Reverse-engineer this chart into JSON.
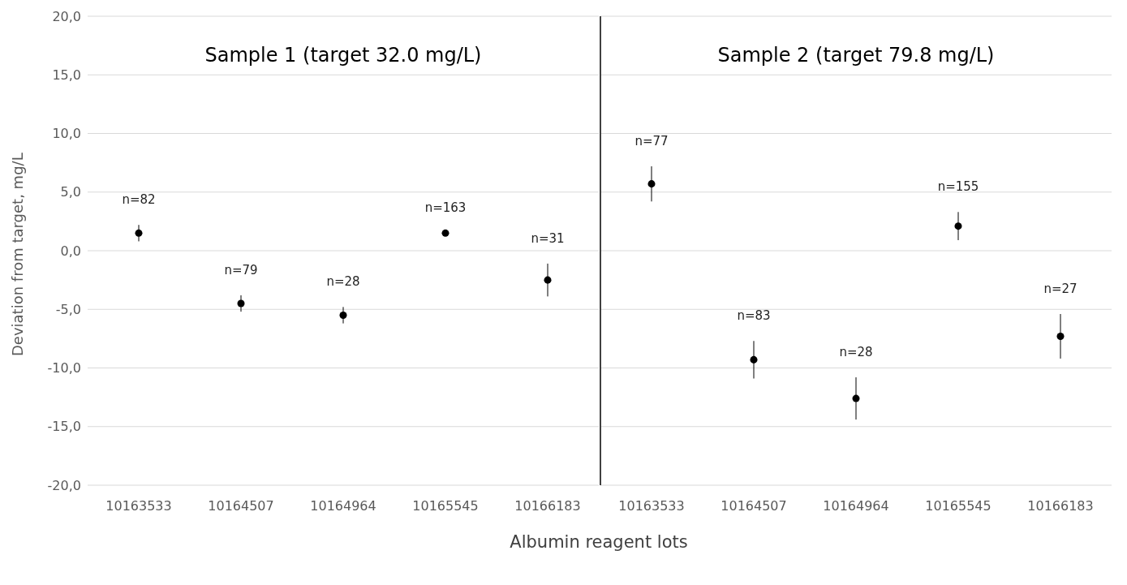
{
  "chart_data": [
    {
      "type": "scatter",
      "categories": [
        "10163533",
        "10164507",
        "10164964",
        "10165545",
        "10166183"
      ],
      "values": [
        1.5,
        -4.5,
        -5.5,
        1.5,
        -2.5
      ],
      "errors": [
        0.7,
        0.7,
        0.7,
        null,
        1.4
      ],
      "color": "#000000",
      "marker": "circle",
      "xlabel": "Albumin reagent lots",
      "ylabel": "Deviation from target, mg/L",
      "annotations": [
        "Sample 1 (target 32.0 mg/L)",
        "n=82",
        "n=79",
        "n=28",
        "n=163",
        "n=31"
      ],
      "ylim": [
        -20,
        20
      ],
      "yticks": [
        {
          "value": -20,
          "label": "-20,0"
        },
        {
          "value": -15,
          "label": "-15,0"
        },
        {
          "value": -10,
          "label": "-10,0"
        },
        {
          "value": -5,
          "label": "-5,0"
        },
        {
          "value": 0,
          "label": "0,0"
        },
        {
          "value": 5,
          "label": "5,0"
        },
        {
          "value": 10,
          "label": "10,0"
        },
        {
          "value": 15,
          "label": "15,0"
        },
        {
          "value": 20,
          "label": "20,0"
        }
      ],
      "grid": "y"
    },
    {
      "type": "scatter",
      "categories": [
        "10163533",
        "10164507",
        "10164964",
        "10165545",
        "10166183"
      ],
      "values": [
        5.7,
        -9.3,
        -12.6,
        2.1,
        -7.3
      ],
      "errors": [
        1.5,
        1.6,
        1.8,
        1.2,
        1.9
      ],
      "color": "#000000",
      "marker": "circle",
      "annotations": [
        "Sample 2 (target 79.8 mg/L)",
        "n=77",
        "n=83",
        "n=28",
        "n=155",
        "n=27"
      ],
      "ylim": [
        -20,
        20
      ],
      "yticks": [
        -20,
        -15,
        -10,
        -5,
        0,
        5,
        10,
        15,
        20
      ],
      "tick_labels": "x",
      "grid": "y"
    }
  ]
}
